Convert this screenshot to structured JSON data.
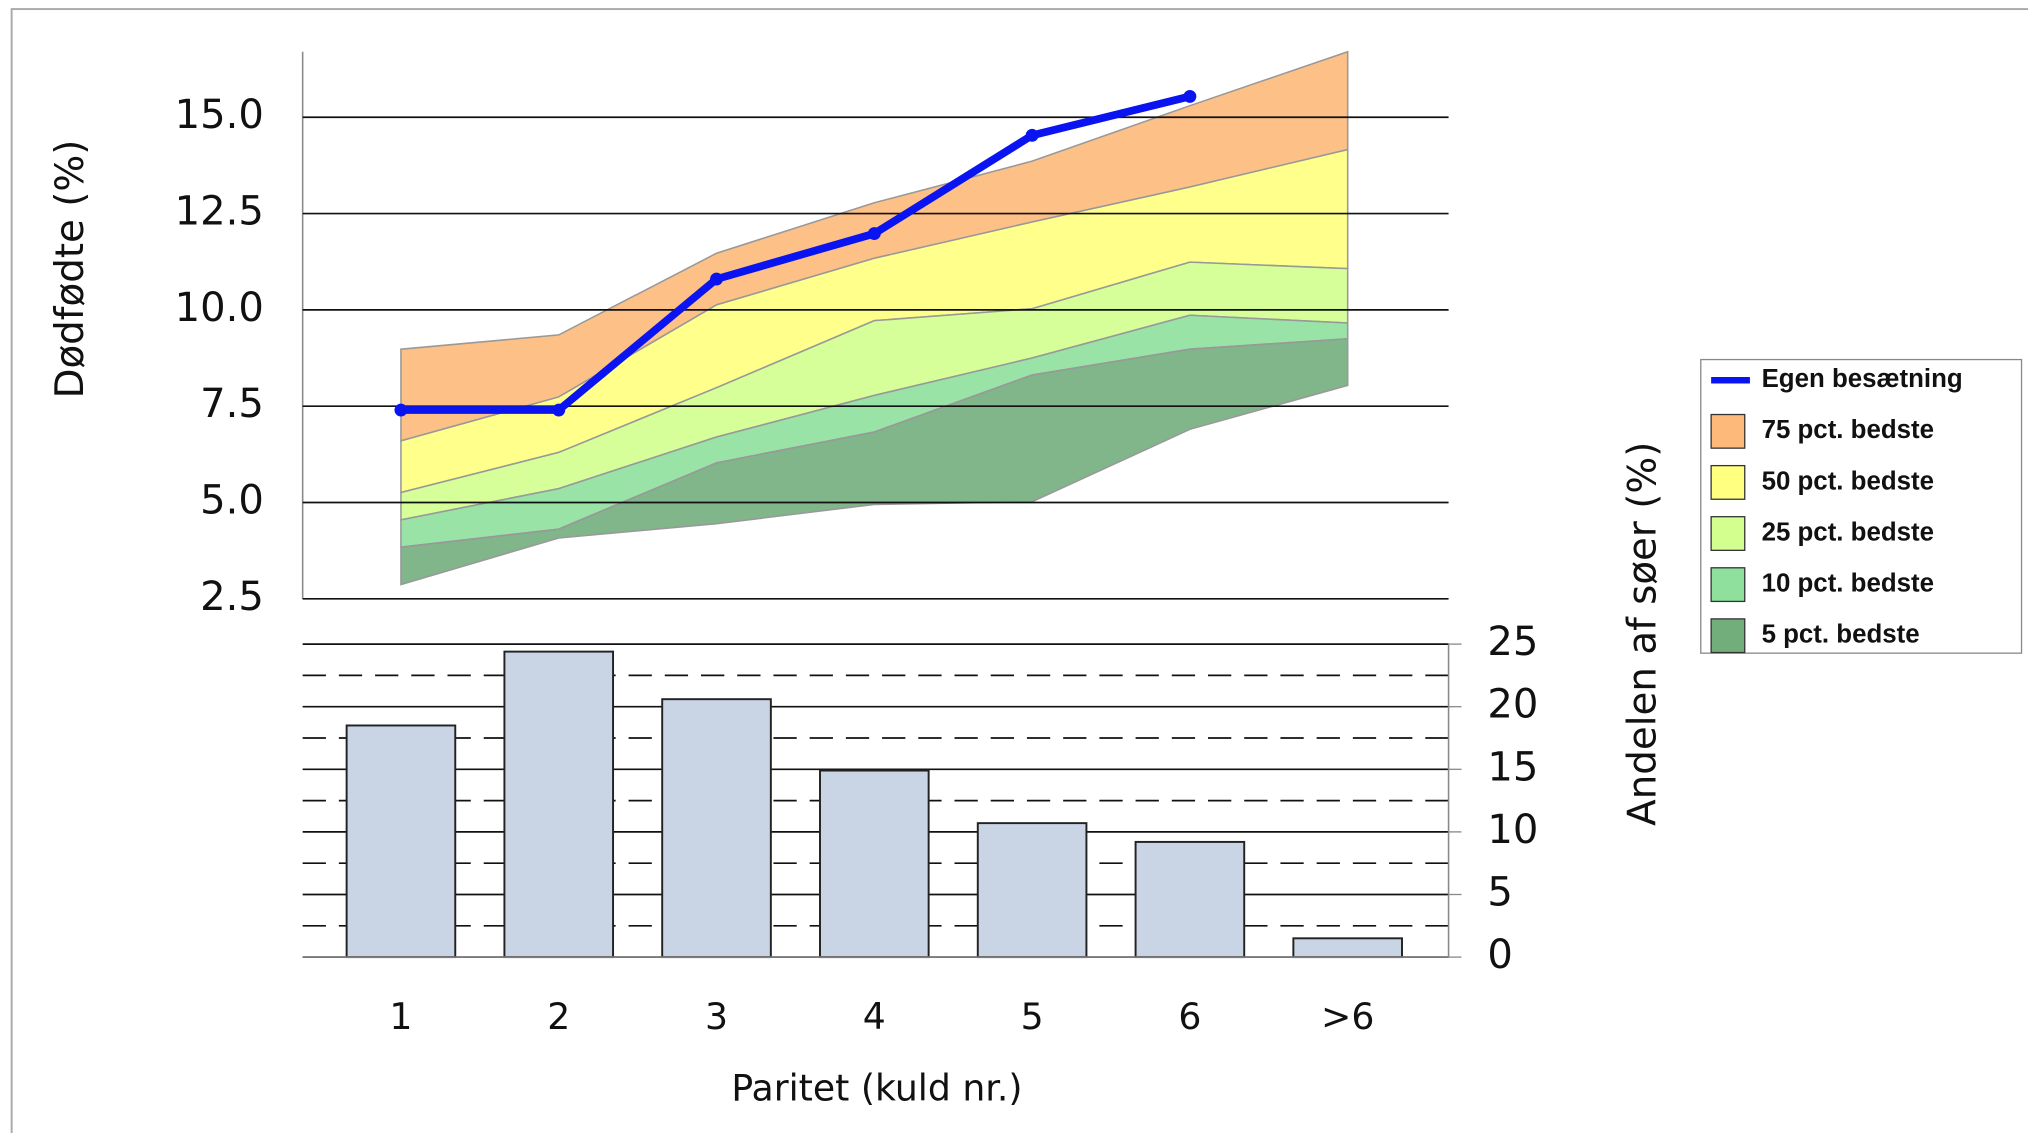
{
  "chart_data": [
    {
      "type": "area",
      "ylabel": "Dødfødte (%)",
      "ylim": [
        2.5,
        16.7
      ],
      "yticks": [
        2.5,
        {
          "value": 5,
          "label": "5.0"
        },
        7.5,
        {
          "value": 10,
          "label": "10.0"
        },
        12.5,
        {
          "value": 15,
          "label": "15.0"
        }
      ],
      "grid": true,
      "legend": "right",
      "series": [
        {
          "name": "Egen besætning",
          "type": "line",
          "color": "#0a14f0",
          "values": [
            7.4,
            7.4,
            10.8,
            11.98,
            14.53,
            15.54,
            null
          ]
        },
        {
          "name": "75 pct. bedste",
          "type": "band",
          "color": "#fdb97a",
          "low": [
            6.6,
            7.74,
            10.13,
            11.34,
            12.28,
            13.19,
            14.16
          ],
          "high": [
            8.98,
            9.35,
            11.47,
            12.78,
            13.86,
            15.3,
            16.7
          ]
        },
        {
          "name": "50 pct. bedste",
          "type": "band",
          "color": "#ffff80",
          "low": [
            5.26,
            6.3,
            7.98,
            9.72,
            10.03,
            11.24,
            11.07
          ],
          "high": [
            6.6,
            7.74,
            10.13,
            11.34,
            12.28,
            13.19,
            14.16
          ]
        },
        {
          "name": "25 pct. bedste",
          "type": "band",
          "color": "#d2ff8e",
          "low": [
            4.55,
            5.36,
            6.7,
            7.78,
            8.75,
            9.86,
            9.66
          ],
          "high": [
            5.26,
            6.3,
            7.98,
            9.72,
            10.03,
            11.24,
            11.07
          ]
        },
        {
          "name": "10 pct. bedste",
          "type": "band",
          "color": "#8ee09c",
          "low": [
            3.84,
            4.31,
            6.03,
            6.83,
            8.31,
            8.98,
            9.25
          ],
          "high": [
            4.55,
            5.36,
            6.7,
            7.78,
            8.75,
            9.86,
            9.66
          ]
        },
        {
          "name": "5 pct. bedste",
          "type": "band",
          "color": "#72ae7c",
          "low": [
            2.87,
            4.08,
            4.45,
            4.95,
            5.02,
            6.9,
            8.04
          ],
          "high": [
            3.84,
            4.31,
            6.03,
            6.83,
            8.31,
            8.98,
            9.25
          ]
        }
      ]
    },
    {
      "type": "bar",
      "ylabel": "Andelen af søer (%)",
      "xlabel": "Paritet (kuld nr.)",
      "categories": [
        "1",
        "2",
        "3",
        "4",
        "5",
        "6",
        ">6"
      ],
      "values": [
        18.5,
        24.4,
        20.6,
        14.9,
        10.7,
        9.2,
        1.5
      ],
      "color": "#c9d5e5",
      "ylim": [
        0,
        25
      ],
      "yticks": [
        0,
        5,
        10,
        15,
        20,
        25
      ],
      "minor_yticks": [
        2.5,
        7.5,
        12.5,
        17.5,
        22.5
      ],
      "grid": true,
      "y_axis_side": "right"
    }
  ]
}
